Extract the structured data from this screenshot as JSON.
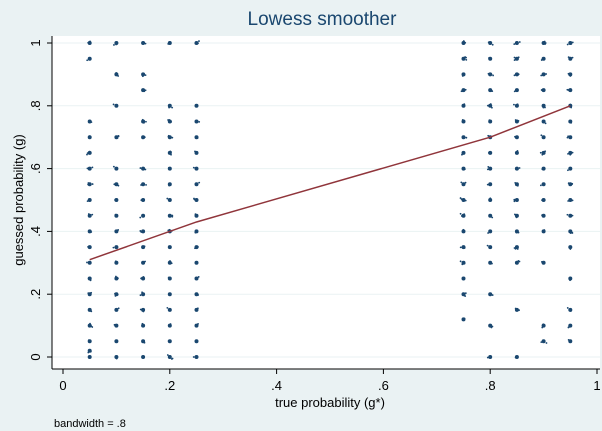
{
  "chart_data": {
    "type": "scatter",
    "title": "Lowess smoother",
    "xlabel": "true probability (g*)",
    "ylabel": "guessed probability (g)",
    "note": "bandwidth = .8",
    "xlim": [
      0,
      1
    ],
    "ylim": [
      0,
      1
    ],
    "xticks": [
      {
        "value": 0,
        "label": "0"
      },
      {
        "value": 0.2,
        "label": ".2"
      },
      {
        "value": 0.4,
        "label": ".4"
      },
      {
        "value": 0.6,
        "label": ".6"
      },
      {
        "value": 0.8,
        "label": ".8"
      },
      {
        "value": 1,
        "label": "1"
      }
    ],
    "yticks": [
      {
        "value": 0,
        "label": "0"
      },
      {
        "value": 0.2,
        "label": ".2"
      },
      {
        "value": 0.4,
        "label": ".4"
      },
      {
        "value": 0.6,
        "label": ".6"
      },
      {
        "value": 0.8,
        "label": ".8"
      },
      {
        "value": 1,
        "label": "1"
      }
    ],
    "grid": "horizontal",
    "colors": {
      "points": "#1a476f",
      "smoother": "#90353b",
      "title": "#1a476f",
      "plot_bg": "#ffffff",
      "outer_bg": "#eaf2f3"
    },
    "series": [
      {
        "type": "scatter",
        "points": [
          {
            "x": 0.05,
            "y": 1
          },
          {
            "x": 0.05,
            "y": 0.95
          },
          {
            "x": 0.05,
            "y": 0.75
          },
          {
            "x": 0.05,
            "y": 0.7
          },
          {
            "x": 0.05,
            "y": 0.65
          },
          {
            "x": 0.05,
            "y": 0.6
          },
          {
            "x": 0.05,
            "y": 0.55
          },
          {
            "x": 0.05,
            "y": 0.5
          },
          {
            "x": 0.05,
            "y": 0.45
          },
          {
            "x": 0.05,
            "y": 0.4
          },
          {
            "x": 0.05,
            "y": 0.35
          },
          {
            "x": 0.05,
            "y": 0.3
          },
          {
            "x": 0.05,
            "y": 0.25
          },
          {
            "x": 0.05,
            "y": 0.2
          },
          {
            "x": 0.05,
            "y": 0.15
          },
          {
            "x": 0.05,
            "y": 0.1
          },
          {
            "x": 0.05,
            "y": 0.05
          },
          {
            "x": 0.05,
            "y": 0.02
          },
          {
            "x": 0.05,
            "y": 0
          },
          {
            "x": 0.1,
            "y": 1
          },
          {
            "x": 0.1,
            "y": 0.9
          },
          {
            "x": 0.1,
            "y": 0.8
          },
          {
            "x": 0.1,
            "y": 0.7
          },
          {
            "x": 0.1,
            "y": 0.6
          },
          {
            "x": 0.1,
            "y": 0.55
          },
          {
            "x": 0.1,
            "y": 0.5
          },
          {
            "x": 0.1,
            "y": 0.45
          },
          {
            "x": 0.1,
            "y": 0.4
          },
          {
            "x": 0.1,
            "y": 0.35
          },
          {
            "x": 0.1,
            "y": 0.3
          },
          {
            "x": 0.1,
            "y": 0.25
          },
          {
            "x": 0.1,
            "y": 0.2
          },
          {
            "x": 0.1,
            "y": 0.15
          },
          {
            "x": 0.1,
            "y": 0.1
          },
          {
            "x": 0.1,
            "y": 0.05
          },
          {
            "x": 0.1,
            "y": 0
          },
          {
            "x": 0.15,
            "y": 1
          },
          {
            "x": 0.15,
            "y": 0.9
          },
          {
            "x": 0.15,
            "y": 0.85
          },
          {
            "x": 0.15,
            "y": 0.75
          },
          {
            "x": 0.15,
            "y": 0.7
          },
          {
            "x": 0.15,
            "y": 0.6
          },
          {
            "x": 0.15,
            "y": 0.55
          },
          {
            "x": 0.15,
            "y": 0.5
          },
          {
            "x": 0.15,
            "y": 0.45
          },
          {
            "x": 0.15,
            "y": 0.4
          },
          {
            "x": 0.15,
            "y": 0.35
          },
          {
            "x": 0.15,
            "y": 0.3
          },
          {
            "x": 0.15,
            "y": 0.25
          },
          {
            "x": 0.15,
            "y": 0.2
          },
          {
            "x": 0.15,
            "y": 0.15
          },
          {
            "x": 0.15,
            "y": 0.1
          },
          {
            "x": 0.15,
            "y": 0.05
          },
          {
            "x": 0.15,
            "y": 0
          },
          {
            "x": 0.2,
            "y": 1
          },
          {
            "x": 0.2,
            "y": 0.8
          },
          {
            "x": 0.2,
            "y": 0.75
          },
          {
            "x": 0.2,
            "y": 0.7
          },
          {
            "x": 0.2,
            "y": 0.65
          },
          {
            "x": 0.2,
            "y": 0.6
          },
          {
            "x": 0.2,
            "y": 0.55
          },
          {
            "x": 0.2,
            "y": 0.5
          },
          {
            "x": 0.2,
            "y": 0.45
          },
          {
            "x": 0.2,
            "y": 0.4
          },
          {
            "x": 0.2,
            "y": 0.35
          },
          {
            "x": 0.2,
            "y": 0.3
          },
          {
            "x": 0.2,
            "y": 0.25
          },
          {
            "x": 0.2,
            "y": 0.2
          },
          {
            "x": 0.2,
            "y": 0.15
          },
          {
            "x": 0.2,
            "y": 0.1
          },
          {
            "x": 0.2,
            "y": 0.05
          },
          {
            "x": 0.2,
            "y": 0
          },
          {
            "x": 0.25,
            "y": 1
          },
          {
            "x": 0.25,
            "y": 0.8
          },
          {
            "x": 0.25,
            "y": 0.75
          },
          {
            "x": 0.25,
            "y": 0.7
          },
          {
            "x": 0.25,
            "y": 0.65
          },
          {
            "x": 0.25,
            "y": 0.6
          },
          {
            "x": 0.25,
            "y": 0.55
          },
          {
            "x": 0.25,
            "y": 0.5
          },
          {
            "x": 0.25,
            "y": 0.45
          },
          {
            "x": 0.25,
            "y": 0.4
          },
          {
            "x": 0.25,
            "y": 0.35
          },
          {
            "x": 0.25,
            "y": 0.3
          },
          {
            "x": 0.25,
            "y": 0.25
          },
          {
            "x": 0.25,
            "y": 0.2
          },
          {
            "x": 0.25,
            "y": 0.15
          },
          {
            "x": 0.25,
            "y": 0.1
          },
          {
            "x": 0.25,
            "y": 0.05
          },
          {
            "x": 0.25,
            "y": 0
          },
          {
            "x": 0.75,
            "y": 1
          },
          {
            "x": 0.75,
            "y": 0.95
          },
          {
            "x": 0.75,
            "y": 0.9
          },
          {
            "x": 0.75,
            "y": 0.85
          },
          {
            "x": 0.75,
            "y": 0.8
          },
          {
            "x": 0.75,
            "y": 0.75
          },
          {
            "x": 0.75,
            "y": 0.7
          },
          {
            "x": 0.75,
            "y": 0.65
          },
          {
            "x": 0.75,
            "y": 0.6
          },
          {
            "x": 0.75,
            "y": 0.55
          },
          {
            "x": 0.75,
            "y": 0.5
          },
          {
            "x": 0.75,
            "y": 0.45
          },
          {
            "x": 0.75,
            "y": 0.4
          },
          {
            "x": 0.75,
            "y": 0.35
          },
          {
            "x": 0.75,
            "y": 0.3
          },
          {
            "x": 0.75,
            "y": 0.25
          },
          {
            "x": 0.75,
            "y": 0.2
          },
          {
            "x": 0.75,
            "y": 0.12
          },
          {
            "x": 0.8,
            "y": 1
          },
          {
            "x": 0.8,
            "y": 0.95
          },
          {
            "x": 0.8,
            "y": 0.9
          },
          {
            "x": 0.8,
            "y": 0.85
          },
          {
            "x": 0.8,
            "y": 0.8
          },
          {
            "x": 0.8,
            "y": 0.75
          },
          {
            "x": 0.8,
            "y": 0.7
          },
          {
            "x": 0.8,
            "y": 0.65
          },
          {
            "x": 0.8,
            "y": 0.6
          },
          {
            "x": 0.8,
            "y": 0.55
          },
          {
            "x": 0.8,
            "y": 0.5
          },
          {
            "x": 0.8,
            "y": 0.45
          },
          {
            "x": 0.8,
            "y": 0.4
          },
          {
            "x": 0.8,
            "y": 0.35
          },
          {
            "x": 0.8,
            "y": 0.3
          },
          {
            "x": 0.8,
            "y": 0.2
          },
          {
            "x": 0.8,
            "y": 0.1
          },
          {
            "x": 0.8,
            "y": 0
          },
          {
            "x": 0.85,
            "y": 1
          },
          {
            "x": 0.85,
            "y": 0.95
          },
          {
            "x": 0.85,
            "y": 0.9
          },
          {
            "x": 0.85,
            "y": 0.85
          },
          {
            "x": 0.85,
            "y": 0.8
          },
          {
            "x": 0.85,
            "y": 0.75
          },
          {
            "x": 0.85,
            "y": 0.7
          },
          {
            "x": 0.85,
            "y": 0.65
          },
          {
            "x": 0.85,
            "y": 0.6
          },
          {
            "x": 0.85,
            "y": 0.55
          },
          {
            "x": 0.85,
            "y": 0.5
          },
          {
            "x": 0.85,
            "y": 0.45
          },
          {
            "x": 0.85,
            "y": 0.4
          },
          {
            "x": 0.85,
            "y": 0.35
          },
          {
            "x": 0.85,
            "y": 0.3
          },
          {
            "x": 0.85,
            "y": 0.15
          },
          {
            "x": 0.85,
            "y": 0
          },
          {
            "x": 0.9,
            "y": 1
          },
          {
            "x": 0.9,
            "y": 0.95
          },
          {
            "x": 0.9,
            "y": 0.9
          },
          {
            "x": 0.9,
            "y": 0.85
          },
          {
            "x": 0.9,
            "y": 0.8
          },
          {
            "x": 0.9,
            "y": 0.75
          },
          {
            "x": 0.9,
            "y": 0.7
          },
          {
            "x": 0.9,
            "y": 0.65
          },
          {
            "x": 0.9,
            "y": 0.6
          },
          {
            "x": 0.9,
            "y": 0.55
          },
          {
            "x": 0.9,
            "y": 0.5
          },
          {
            "x": 0.9,
            "y": 0.45
          },
          {
            "x": 0.9,
            "y": 0.4
          },
          {
            "x": 0.9,
            "y": 0.3
          },
          {
            "x": 0.9,
            "y": 0.1
          },
          {
            "x": 0.9,
            "y": 0.05
          },
          {
            "x": 0.95,
            "y": 1
          },
          {
            "x": 0.95,
            "y": 0.95
          },
          {
            "x": 0.95,
            "y": 0.9
          },
          {
            "x": 0.95,
            "y": 0.85
          },
          {
            "x": 0.95,
            "y": 0.8
          },
          {
            "x": 0.95,
            "y": 0.75
          },
          {
            "x": 0.95,
            "y": 0.7
          },
          {
            "x": 0.95,
            "y": 0.65
          },
          {
            "x": 0.95,
            "y": 0.6
          },
          {
            "x": 0.95,
            "y": 0.55
          },
          {
            "x": 0.95,
            "y": 0.5
          },
          {
            "x": 0.95,
            "y": 0.45
          },
          {
            "x": 0.95,
            "y": 0.4
          },
          {
            "x": 0.95,
            "y": 0.35
          },
          {
            "x": 0.95,
            "y": 0.25
          },
          {
            "x": 0.95,
            "y": 0.15
          },
          {
            "x": 0.95,
            "y": 0.1
          },
          {
            "x": 0.95,
            "y": 0.05
          }
        ]
      },
      {
        "type": "line",
        "points": [
          {
            "x": 0.05,
            "y": 0.31
          },
          {
            "x": 0.25,
            "y": 0.43
          },
          {
            "x": 0.8,
            "y": 0.7
          },
          {
            "x": 0.95,
            "y": 0.8
          }
        ]
      }
    ]
  }
}
